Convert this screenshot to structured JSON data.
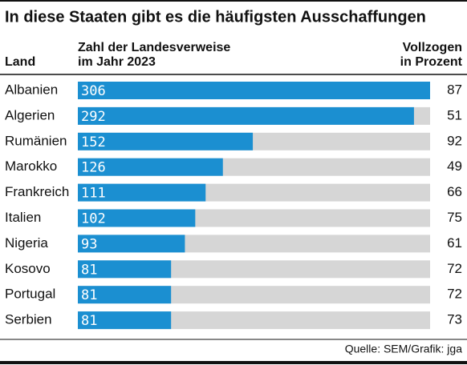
{
  "chart_data": {
    "type": "bar",
    "orientation": "horizontal",
    "title": "In diese Staaten gibt es die häufigsten Ausschaffungen",
    "category_label": "Land",
    "categories": [
      "Albanien",
      "Algerien",
      "Rumänien",
      "Marokko",
      "Frankreich",
      "Italien",
      "Nigeria",
      "Kosovo",
      "Portugal",
      "Serbien"
    ],
    "series": [
      {
        "name": "Zahl der Landesverweise\nim Jahr 2023",
        "color": "#1b8fd1",
        "values": [
          306,
          292,
          152,
          126,
          111,
          102,
          93,
          81,
          81,
          81
        ]
      },
      {
        "name": "Vollzogen\nin Prozent",
        "values": [
          87,
          51,
          92,
          49,
          66,
          75,
          61,
          72,
          72,
          73
        ]
      }
    ],
    "track_color": "#d6d6d6",
    "xlim": [
      0,
      306
    ],
    "source": "Quelle: SEM/Grafik: jga"
  }
}
